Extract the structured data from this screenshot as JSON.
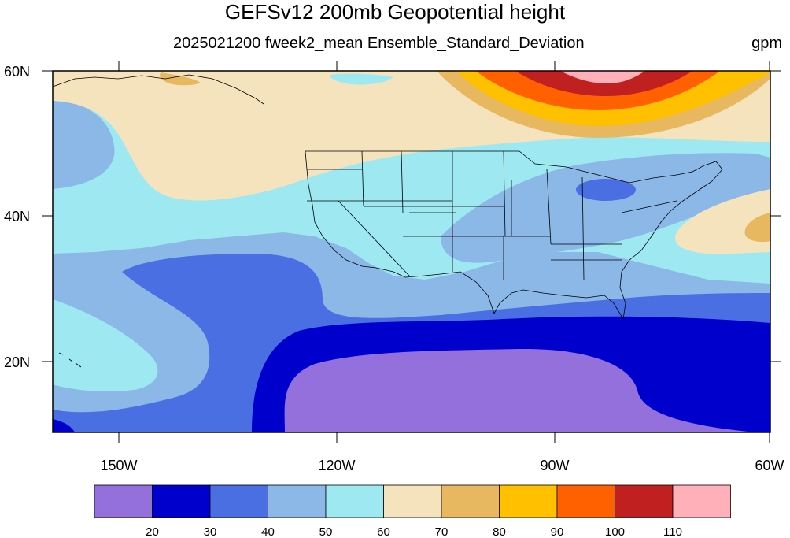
{
  "title": "GEFSv12 200mb Geopotential height",
  "subtitle": "2025021200 fweek2_mean Ensemble_Standard_Deviation",
  "units": "gpm",
  "map": {
    "lon_range": [
      -159,
      -60
    ],
    "lat_range": [
      10,
      60
    ],
    "lon_ticks": [
      "150W",
      "120W",
      "90W",
      "60W"
    ],
    "lat_ticks": [
      "60N",
      "40N",
      "20N"
    ]
  },
  "colorbar": {
    "levels": [
      "20",
      "30",
      "40",
      "50",
      "60",
      "70",
      "80",
      "90",
      "100",
      "110"
    ],
    "colors": [
      "#9370db",
      "#0000cd",
      "#4a6fe3",
      "#8cb8e8",
      "#9ee8f2",
      "#f5e3bd",
      "#e8b860",
      "#ffc000",
      "#ff6000",
      "#c02020",
      "#ffb0b8"
    ]
  },
  "chart_data": {
    "type": "heatmap",
    "title": "GEFSv12 200mb Geopotential height",
    "subtitle": "2025021200 fweek2_mean Ensemble_Standard_Deviation",
    "units": "gpm",
    "legend_placement": "bottom",
    "contour_levels": [
      20,
      30,
      40,
      50,
      60,
      70,
      80,
      90,
      100,
      110
    ],
    "xlim": [
      "160W",
      "60W"
    ],
    "ylim": [
      "10N",
      "60N"
    ]
  }
}
